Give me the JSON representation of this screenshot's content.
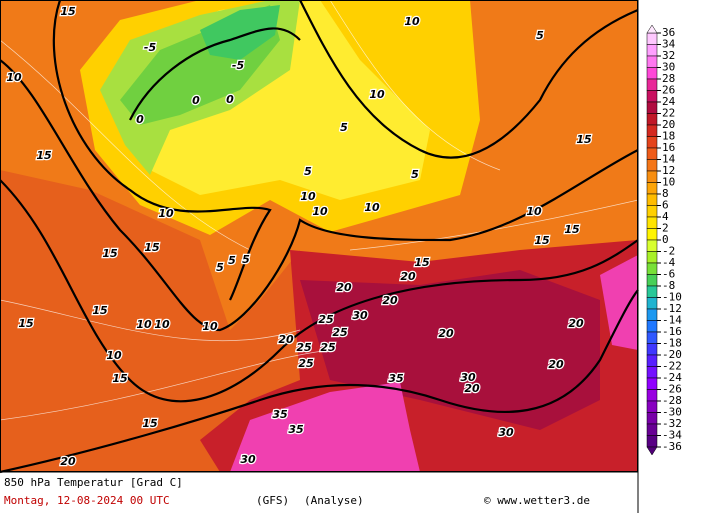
{
  "map": {
    "contour_labels": [
      15,
      10,
      5,
      10,
      10,
      5,
      15,
      15,
      5,
      5,
      10,
      10,
      10,
      10,
      10,
      15,
      15,
      15,
      15,
      5,
      5,
      5,
      15,
      20,
      20,
      20,
      15,
      15,
      10,
      10,
      10,
      20,
      25,
      25,
      30,
      20,
      20,
      10,
      25,
      25,
      25,
      35,
      30,
      20,
      20,
      15,
      15,
      35,
      35,
      30,
      20,
      30,
      -5,
      -5,
      0,
      0,
      0
    ],
    "colorbar": {
      "ticks": [
        36,
        34,
        32,
        30,
        28,
        26,
        24,
        22,
        20,
        18,
        16,
        14,
        12,
        10,
        8,
        6,
        4,
        2,
        0,
        -2,
        -4,
        -6,
        -8,
        -10,
        -12,
        -14,
        -16,
        -18,
        -20,
        -22,
        -24,
        -26,
        -28,
        -30,
        -32,
        -34,
        -36
      ],
      "colors": [
        "#ffc8ff",
        "#ffa0ff",
        "#ff78f0",
        "#ff48d8",
        "#e82898",
        "#c81060",
        "#b00c40",
        "#c01828",
        "#d42a20",
        "#e4441c",
        "#ee5c1a",
        "#f47618",
        "#f88e10",
        "#fca408",
        "#ffbc00",
        "#ffd000",
        "#ffe400",
        "#fff400",
        "#d8ff30",
        "#a8f028",
        "#78e038",
        "#48d058",
        "#28c898",
        "#20b4d0",
        "#1c98f0",
        "#2078ff",
        "#3058ff",
        "#4038ff",
        "#5820ff",
        "#7410ff",
        "#9000ff",
        "#9800e0",
        "#8800c0",
        "#7800a8",
        "#680094",
        "#580084"
      ]
    }
  },
  "footer": {
    "title": "850 hPa Temperatur [Grad C]",
    "date": "Montag, 12-08-2024  00 UTC",
    "model": "(GFS)",
    "run": "(Analyse)",
    "credit": "© www.wetter3.de"
  }
}
